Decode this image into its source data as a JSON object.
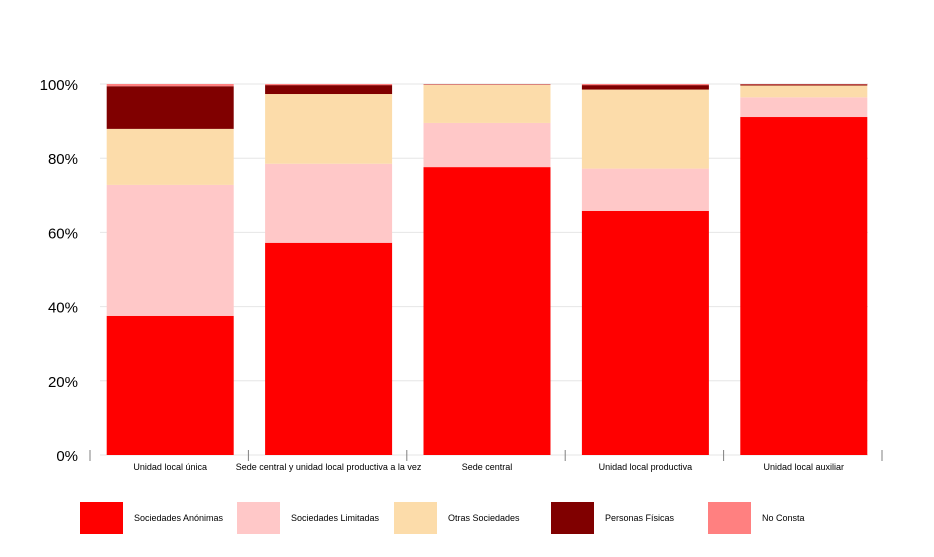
{
  "chart_data": {
    "type": "bar",
    "stacked": true,
    "percent": true,
    "categories": [
      "Unidad local única",
      "Sede central y unidad local productiva a la vez",
      "Sede central",
      "Unidad local productiva",
      "Unidad local auxiliar"
    ],
    "series": [
      {
        "name": "Sociedades Anónimas",
        "color": "#ff0000",
        "values": [
          37.5,
          57.2,
          77.6,
          65.8,
          91.1
        ]
      },
      {
        "name": "Sociedades Limitadas",
        "color": "#ffc8c8",
        "values": [
          35.3,
          21.3,
          11.9,
          11.4,
          5.3
        ]
      },
      {
        "name": "Otras Sociedades",
        "color": "#fcdcaa",
        "values": [
          15.1,
          18.8,
          10.3,
          21.3,
          3.2
        ]
      },
      {
        "name": "Personas Físicas",
        "color": "#800000",
        "values": [
          11.5,
          2.4,
          0.1,
          1.2,
          0.3
        ]
      },
      {
        "name": "No Consta",
        "color": "#ff8080",
        "values": [
          0.6,
          0.3,
          0.1,
          0.3,
          0.1
        ]
      }
    ],
    "yticks": [
      "0%",
      "20%",
      "40%",
      "60%",
      "80%",
      "100%"
    ],
    "ylim": [
      0,
      100
    ],
    "grid": true,
    "legend_position": "bottom"
  }
}
